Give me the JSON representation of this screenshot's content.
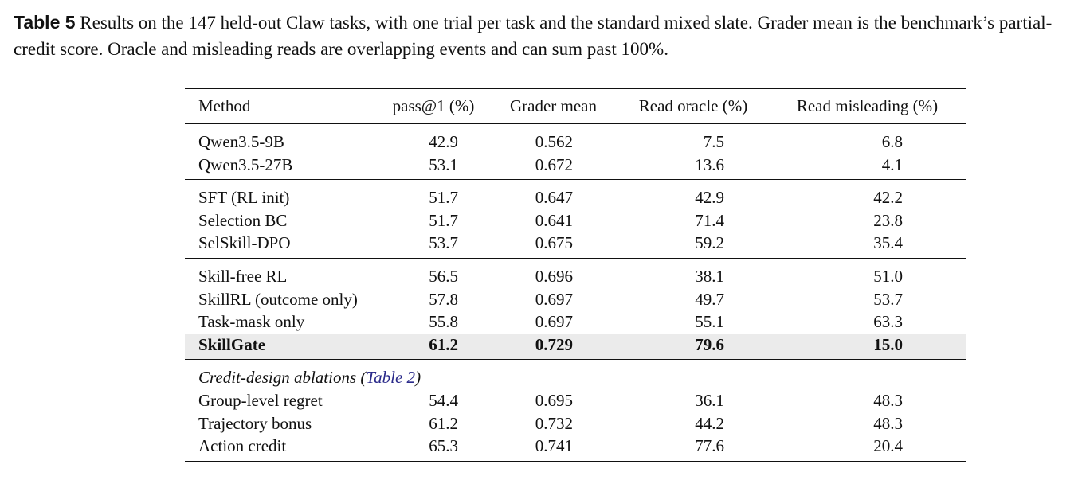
{
  "caption": {
    "label": "Table 5",
    "text": "Results on the 147 held-out Claw tasks, with one trial per task and the standard mixed slate. Grader mean is the benchmark’s partial-credit score. Oracle and misleading reads are overlapping events and can sum past 100%."
  },
  "table": {
    "headers": {
      "method": "Method",
      "pass": "pass@1 (%)",
      "grader": "Grader mean",
      "oracle": "Read oracle (%)",
      "mislead": "Read misleading (%)"
    },
    "rows": [
      {
        "method": "Qwen3.5-9B",
        "pass": "42.9",
        "grader": "0.562",
        "oracle": "7.5",
        "mislead": "6.8"
      },
      {
        "method": "Qwen3.5-27B",
        "pass": "53.1",
        "grader": "0.672",
        "oracle": "13.6",
        "mislead": "4.1"
      },
      {
        "method": "SFT (RL init)",
        "pass": "51.7",
        "grader": "0.647",
        "oracle": "42.9",
        "mislead": "42.2"
      },
      {
        "method": "Selection BC",
        "pass": "51.7",
        "grader": "0.641",
        "oracle": "71.4",
        "mislead": "23.8"
      },
      {
        "method": "SelSkill-DPO",
        "pass": "53.7",
        "grader": "0.675",
        "oracle": "59.2",
        "mislead": "35.4"
      },
      {
        "method": "Skill-free RL",
        "pass": "56.5",
        "grader": "0.696",
        "oracle": "38.1",
        "mislead": "51.0"
      },
      {
        "method": "SkillRL (outcome only)",
        "pass": "57.8",
        "grader": "0.697",
        "oracle": "49.7",
        "mislead": "53.7"
      },
      {
        "method": "Task-mask only",
        "pass": "55.8",
        "grader": "0.697",
        "oracle": "55.1",
        "mislead": "63.3"
      },
      {
        "method": "SkillGate",
        "pass": "61.2",
        "grader": "0.729",
        "oracle": "79.6",
        "mislead": "15.0"
      },
      {
        "method": "Group-level regret",
        "pass": "54.4",
        "grader": "0.695",
        "oracle": "36.1",
        "mislead": "48.3"
      },
      {
        "method": "Trajectory bonus",
        "pass": "61.2",
        "grader": "0.732",
        "oracle": "44.2",
        "mislead": "48.3"
      },
      {
        "method": "Action credit",
        "pass": "65.3",
        "grader": "0.741",
        "oracle": "77.6",
        "mislead": "20.4"
      }
    ],
    "subheader": {
      "text": "Credit-design ablations (",
      "ref": "Table 2",
      "close": ")"
    }
  },
  "colors": {
    "highlight_row": "#ebebeb",
    "ref_link": "#2a2a8a"
  }
}
